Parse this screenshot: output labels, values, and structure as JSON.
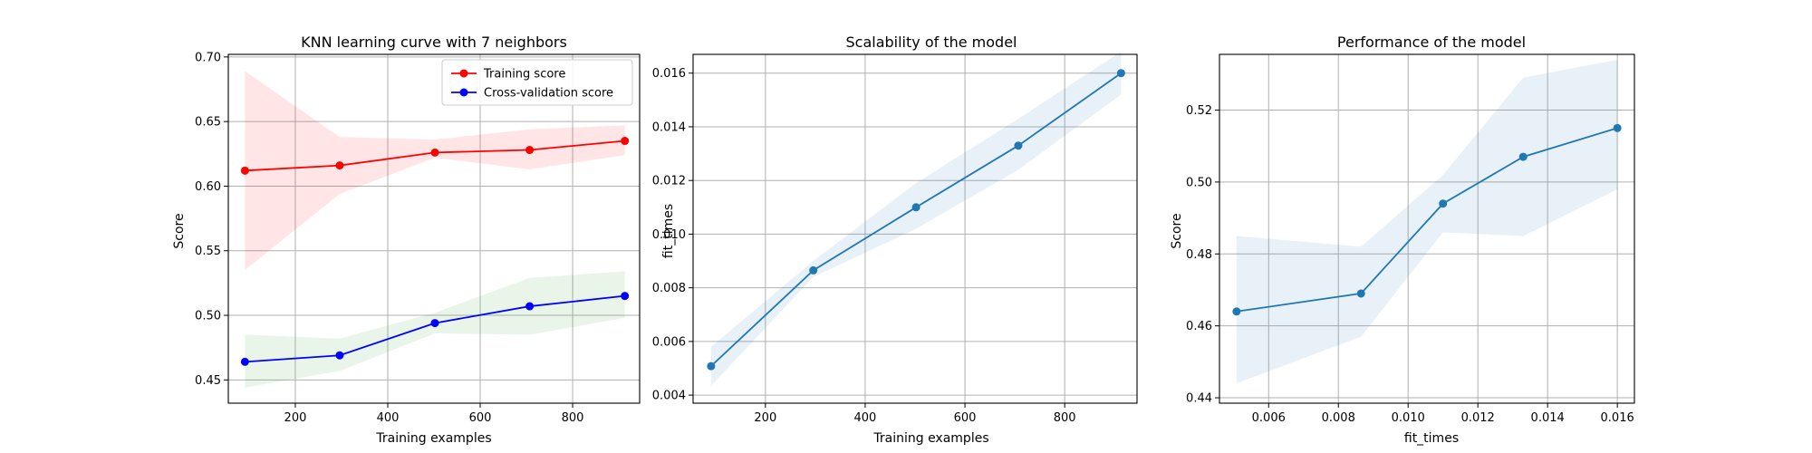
{
  "chart_data": [
    {
      "type": "line",
      "title": "KNN learning curve with 7 neighbors",
      "xlabel": "Training examples",
      "ylabel": "Score",
      "xlim": [
        55,
        945
      ],
      "ylim": [
        0.432,
        0.702
      ],
      "xticks": [
        200,
        400,
        600,
        800
      ],
      "yticks": [
        0.45,
        0.5,
        0.55,
        0.6,
        0.65,
        0.7
      ],
      "ytick_labels": [
        "0.45",
        "0.50",
        "0.55",
        "0.60",
        "0.65",
        "0.70"
      ],
      "grid": true,
      "legend": "top-right",
      "series": [
        {
          "name": "Training score",
          "color": "#ff0000",
          "band_color": "#ff0000",
          "x": [
            91,
            296,
            502,
            707,
            913
          ],
          "y": [
            0.612,
            0.616,
            0.626,
            0.628,
            0.635
          ],
          "lower": [
            0.535,
            0.594,
            0.622,
            0.613,
            0.624
          ],
          "upper": [
            0.689,
            0.638,
            0.636,
            0.644,
            0.647
          ]
        },
        {
          "name": "Cross-validation score",
          "color": "#0000ff",
          "band_color": "#2ca02c",
          "x": [
            91,
            296,
            502,
            707,
            913
          ],
          "y": [
            0.464,
            0.469,
            0.494,
            0.507,
            0.515
          ],
          "lower": [
            0.444,
            0.457,
            0.486,
            0.485,
            0.498
          ],
          "upper": [
            0.485,
            0.482,
            0.502,
            0.529,
            0.534
          ]
        }
      ]
    },
    {
      "type": "line",
      "title": "Scalability of the model",
      "xlabel": "Training examples",
      "ylabel": "fit_times",
      "xlim": [
        55,
        945
      ],
      "ylim": [
        0.0037,
        0.0167
      ],
      "xticks": [
        200,
        400,
        600,
        800
      ],
      "yticks": [
        0.004,
        0.006,
        0.008,
        0.01,
        0.012,
        0.014,
        0.016
      ],
      "ytick_labels": [
        "0.004",
        "0.006",
        "0.008",
        "0.010",
        "0.012",
        "0.014",
        "0.016"
      ],
      "grid": true,
      "series": [
        {
          "color": "#1f77b4",
          "band_color": "#1f77b4",
          "x": [
            91,
            296,
            502,
            707,
            913
          ],
          "y": [
            0.00508,
            0.00865,
            0.011,
            0.0133,
            0.016
          ],
          "lower": [
            0.00435,
            0.0084,
            0.0102,
            0.0124,
            0.0152
          ],
          "upper": [
            0.0058,
            0.009,
            0.0119,
            0.0143,
            0.0168
          ]
        }
      ]
    },
    {
      "type": "line",
      "title": "Performance of the model",
      "xlabel": "fit_times",
      "ylabel": "Score",
      "xlim": [
        0.00459,
        0.01649
      ],
      "ylim": [
        0.4385,
        0.5355
      ],
      "xticks": [
        0.006,
        0.008,
        0.01,
        0.012,
        0.014,
        0.016
      ],
      "xtick_labels": [
        "0.006",
        "0.008",
        "0.010",
        "0.012",
        "0.014",
        "0.016"
      ],
      "yticks": [
        0.44,
        0.46,
        0.48,
        0.5,
        0.52
      ],
      "ytick_labels": [
        "0.44",
        "0.46",
        "0.48",
        "0.50",
        "0.52"
      ],
      "grid": true,
      "series": [
        {
          "color": "#1f77b4",
          "band_color": "#1f77b4",
          "x": [
            0.00508,
            0.00865,
            0.011,
            0.0133,
            0.016
          ],
          "y": [
            0.464,
            0.469,
            0.494,
            0.507,
            0.515
          ],
          "lower": [
            0.444,
            0.457,
            0.486,
            0.485,
            0.498
          ],
          "upper": [
            0.485,
            0.482,
            0.502,
            0.529,
            0.534
          ]
        }
      ]
    }
  ]
}
